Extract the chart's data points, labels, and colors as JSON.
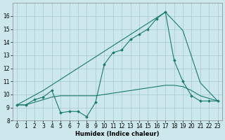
{
  "background_color": "#cce8ec",
  "grid_color": "#aacdd4",
  "line_color": "#1a7a6e",
  "xlabel": "Humidex (Indice chaleur)",
  "ylim": [
    8,
    17
  ],
  "xlim": [
    -0.5,
    23.5
  ],
  "yticks": [
    8,
    9,
    10,
    11,
    12,
    13,
    14,
    15,
    16
  ],
  "xticks": [
    0,
    1,
    2,
    3,
    4,
    5,
    6,
    7,
    8,
    9,
    10,
    11,
    12,
    13,
    14,
    15,
    16,
    17,
    18,
    19,
    20,
    21,
    22,
    23
  ],
  "series1_x": [
    0,
    1,
    2,
    3,
    4,
    5,
    6,
    7,
    8,
    9,
    10,
    11,
    12,
    13,
    14,
    15,
    16,
    17,
    18,
    19,
    20,
    21,
    22,
    23
  ],
  "series1_y": [
    9.2,
    9.2,
    9.6,
    9.8,
    10.3,
    8.6,
    8.7,
    8.7,
    8.3,
    9.4,
    12.3,
    13.2,
    13.4,
    14.2,
    14.6,
    15.0,
    15.8,
    16.3,
    12.6,
    11.0,
    9.9,
    9.5,
    9.5,
    9.5
  ],
  "series2_x": [
    0,
    3,
    17,
    19,
    21,
    23
  ],
  "series2_y": [
    9.2,
    10.3,
    16.3,
    14.9,
    10.9,
    9.5
  ],
  "series3_x": [
    0,
    1,
    2,
    3,
    4,
    5,
    6,
    7,
    8,
    9,
    10,
    11,
    12,
    13,
    14,
    15,
    16,
    17,
    18,
    19,
    20,
    21,
    22,
    23
  ],
  "series3_y": [
    9.2,
    9.2,
    9.4,
    9.6,
    9.8,
    9.9,
    9.9,
    9.9,
    9.9,
    9.9,
    10.0,
    10.1,
    10.2,
    10.3,
    10.4,
    10.5,
    10.6,
    10.7,
    10.7,
    10.6,
    10.3,
    9.9,
    9.7,
    9.5
  ],
  "xlabel_fontsize": 6.0,
  "tick_fontsize": 5.5
}
